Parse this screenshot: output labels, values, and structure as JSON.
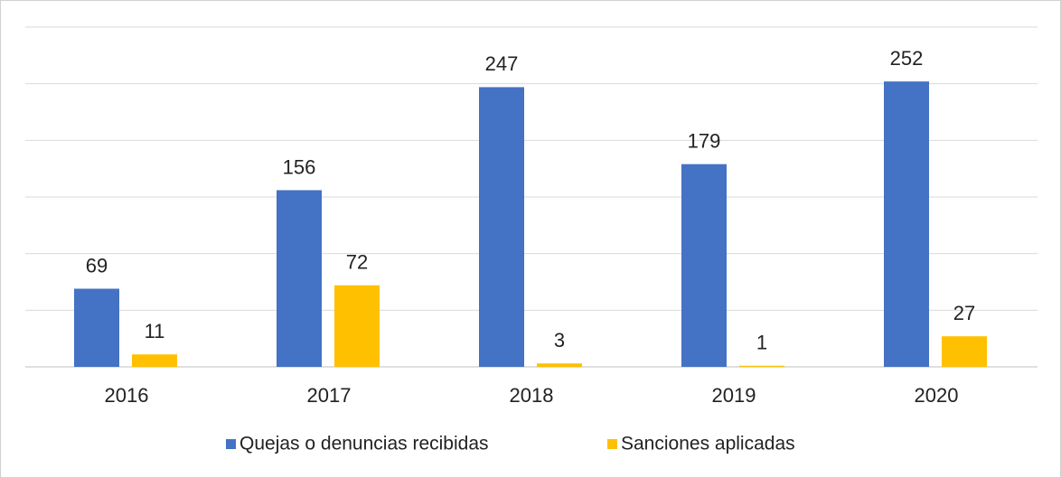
{
  "chart_data": {
    "type": "bar",
    "categories": [
      "2016",
      "2017",
      "2018",
      "2019",
      "2020"
    ],
    "series": [
      {
        "name": "Quejas o denuncias recibidas",
        "color": "#4472c4",
        "values": [
          69,
          156,
          247,
          179,
          252
        ]
      },
      {
        "name": "Sanciones aplicadas",
        "color": "#ffc000",
        "values": [
          11,
          72,
          3,
          1,
          27
        ]
      }
    ],
    "ylim": [
      0,
      300
    ],
    "yticks": [
      0,
      50,
      100,
      150,
      200,
      250,
      300
    ],
    "grid": true,
    "legend": "bottom"
  }
}
